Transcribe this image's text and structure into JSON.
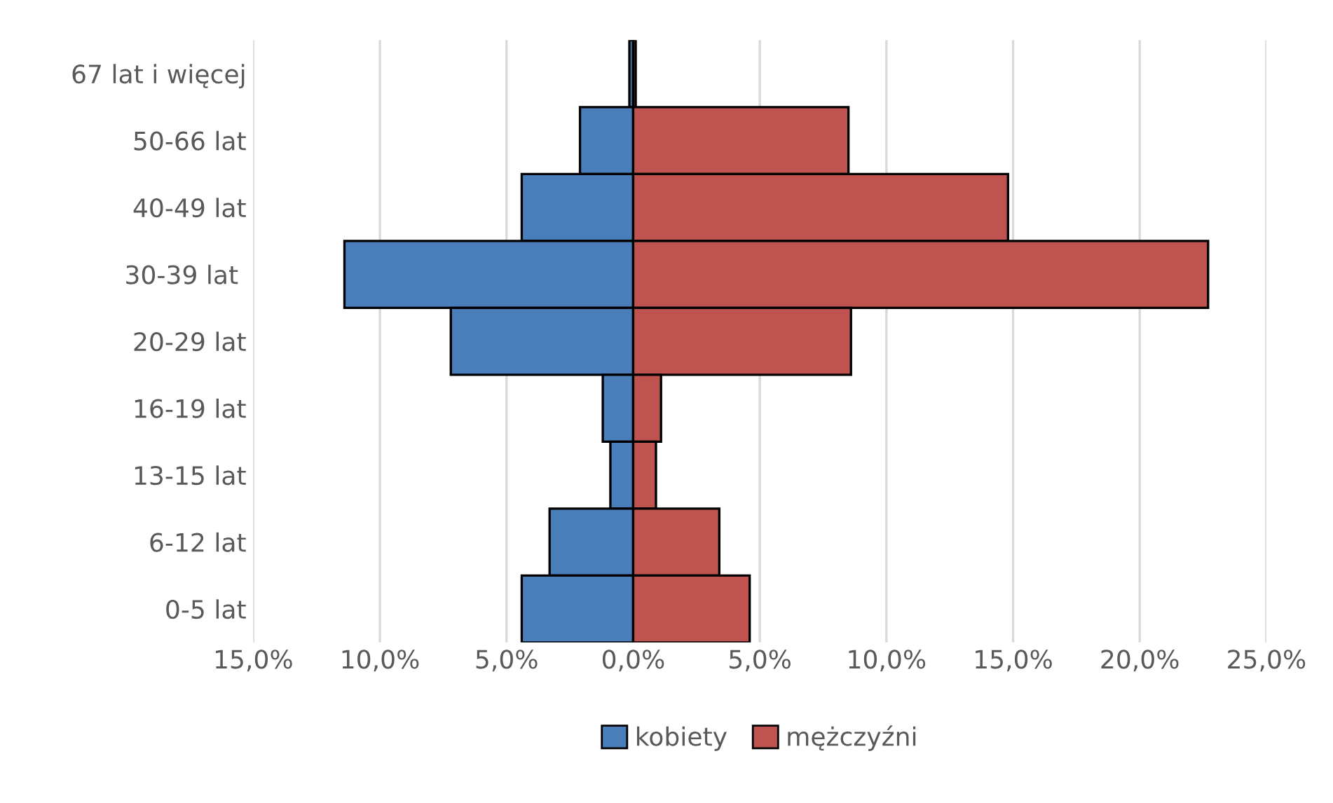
{
  "chart_data": {
    "type": "bar",
    "orientation": "horizontal",
    "categories": [
      "67 lat i więcej",
      "50-66 lat",
      "40-49 lat",
      "30-39 lat ",
      "20-29 lat",
      "16-19 lat",
      "13-15 lat",
      "6-12 lat",
      "0-5 lat"
    ],
    "series": [
      {
        "name": "kobiety",
        "color": "#4a7ebb",
        "values": [
          -0.15,
          -2.1,
          -4.4,
          -11.4,
          -7.2,
          -1.2,
          -0.9,
          -3.3,
          -4.4
        ]
      },
      {
        "name": "mężczyźni",
        "color": "#be5350",
        "values": [
          0.1,
          8.5,
          14.8,
          22.7,
          8.6,
          1.1,
          0.9,
          3.4,
          4.6
        ]
      }
    ],
    "xlim": [
      -15,
      25
    ],
    "xticks": [
      {
        "value": -15,
        "label": "15,0%"
      },
      {
        "value": -10,
        "label": "10,0%"
      },
      {
        "value": -5,
        "label": "5,0%"
      },
      {
        "value": 0,
        "label": "0,0%"
      },
      {
        "value": 5,
        "label": "5,0%"
      },
      {
        "value": 10,
        "label": "10,0%"
      },
      {
        "value": 15,
        "label": "15,0%"
      },
      {
        "value": 20,
        "label": "20,0%"
      },
      {
        "value": 25,
        "label": "25,0%"
      }
    ],
    "grid": "x",
    "legend": "bottom",
    "stacked": true
  }
}
